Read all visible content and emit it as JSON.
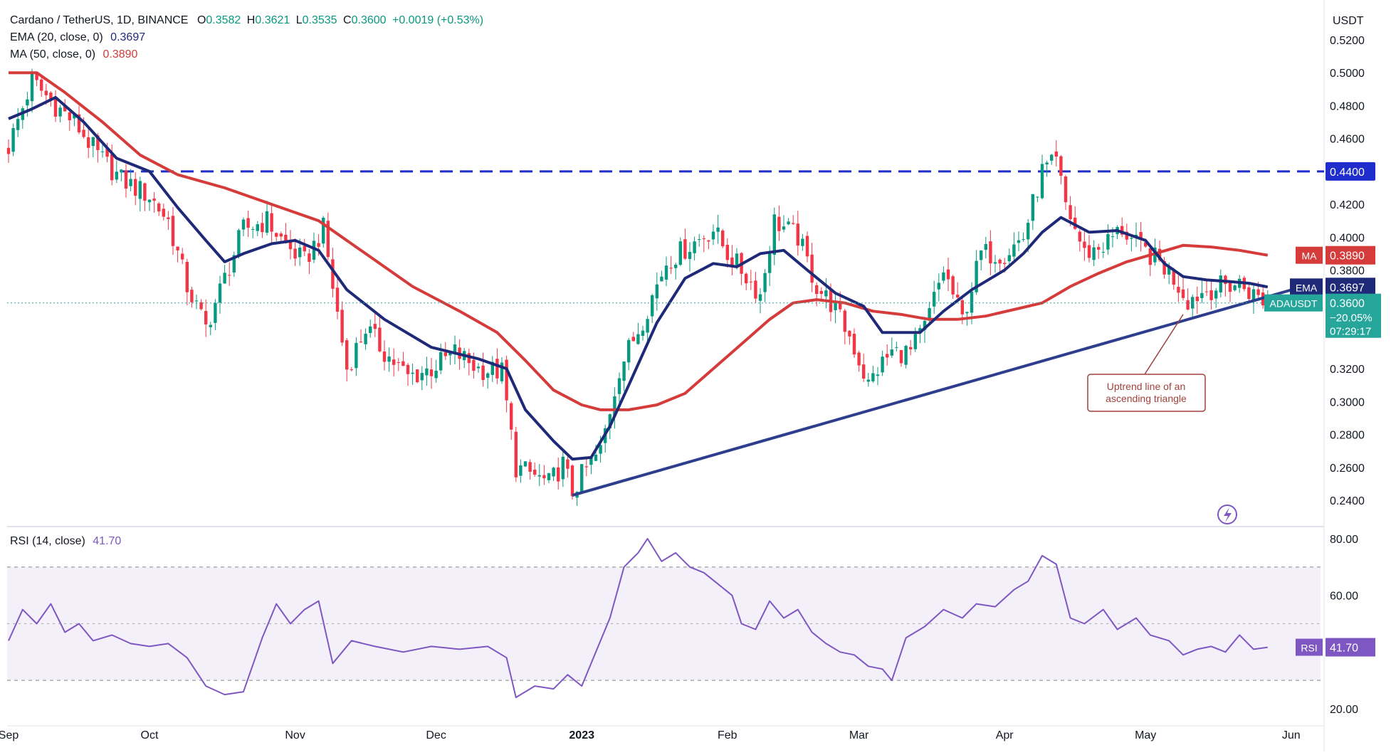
{
  "header": {
    "symbol": "Cardano / TetherUS, 1D, BINANCE",
    "o_label": "O",
    "o": "0.3582",
    "h_label": "H",
    "h": "0.3621",
    "l_label": "L",
    "l": "0.3535",
    "c_label": "C",
    "c": "0.3600",
    "change": "+0.0019 (+0.53%)",
    "ema_label": "EMA (20, close, 0)",
    "ema_value": "0.3697",
    "ma_label": "MA (50, close, 0)",
    "ma_value": "0.3890",
    "rsi_label": "RSI (14, close)",
    "rsi_value": "41.70"
  },
  "colors": {
    "up": "#089981",
    "down": "#f23645",
    "ema": "#1e2a78",
    "ma": "#d63b3b",
    "rsi": "#7e57c2",
    "trendline": "#2d3f8c",
    "resistance": "#1e2dcc",
    "annotation": "#a0413c"
  },
  "icons": {
    "replay": "lightning-bolt-icon"
  },
  "chart_data": [
    {
      "type": "candlestick",
      "title": "Cardano / TetherUS, 1D, BINANCE",
      "ylabel": "USDT",
      "ylim": [
        0.23,
        0.52
      ],
      "y_ticks": [
        "0.5200",
        "0.5000",
        "0.4800",
        "0.4600",
        "0.4200",
        "0.4000",
        "0.3800",
        "0.3200",
        "0.3000",
        "0.2800",
        "0.2600",
        "0.2400"
      ],
      "x_ticks": [
        "Sep",
        "Oct",
        "Nov",
        "Dec",
        "2023",
        "Feb",
        "Mar",
        "Apr",
        "May",
        "Jun"
      ],
      "x_tick_days": [
        0,
        30,
        61,
        91,
        122,
        153,
        181,
        212,
        242,
        273
      ],
      "anchors": [
        [
          0,
          0.455
        ],
        [
          5,
          0.495
        ],
        [
          10,
          0.48
        ],
        [
          14,
          0.47
        ],
        [
          19,
          0.45
        ],
        [
          24,
          0.435
        ],
        [
          30,
          0.425
        ],
        [
          34,
          0.41
        ],
        [
          38,
          0.37
        ],
        [
          42,
          0.345
        ],
        [
          46,
          0.375
        ],
        [
          50,
          0.405
        ],
        [
          55,
          0.41
        ],
        [
          59,
          0.395
        ],
        [
          63,
          0.385
        ],
        [
          67,
          0.405
        ],
        [
          69,
          0.37
        ],
        [
          72,
          0.32
        ],
        [
          76,
          0.345
        ],
        [
          80,
          0.33
        ],
        [
          85,
          0.315
        ],
        [
          90,
          0.32
        ],
        [
          95,
          0.33
        ],
        [
          100,
          0.32
        ],
        [
          105,
          0.318
        ],
        [
          108,
          0.26
        ],
        [
          112,
          0.255
        ],
        [
          115,
          0.25
        ],
        [
          118,
          0.262
        ],
        [
          120,
          0.245
        ],
        [
          122,
          0.255
        ],
        [
          126,
          0.27
        ],
        [
          130,
          0.32
        ],
        [
          135,
          0.35
        ],
        [
          140,
          0.385
        ],
        [
          145,
          0.395
        ],
        [
          150,
          0.405
        ],
        [
          153,
          0.39
        ],
        [
          156,
          0.38
        ],
        [
          160,
          0.365
        ],
        [
          163,
          0.41
        ],
        [
          168,
          0.4
        ],
        [
          172,
          0.37
        ],
        [
          175,
          0.36
        ],
        [
          179,
          0.34
        ],
        [
          183,
          0.31
        ],
        [
          185,
          0.32
        ],
        [
          188,
          0.33
        ],
        [
          192,
          0.33
        ],
        [
          195,
          0.345
        ],
        [
          199,
          0.38
        ],
        [
          203,
          0.35
        ],
        [
          207,
          0.39
        ],
        [
          212,
          0.39
        ],
        [
          216,
          0.4
        ],
        [
          220,
          0.44
        ],
        [
          223,
          0.445
        ],
        [
          225,
          0.42
        ],
        [
          229,
          0.39
        ],
        [
          233,
          0.395
        ],
        [
          237,
          0.405
        ],
        [
          240,
          0.395
        ],
        [
          245,
          0.385
        ],
        [
          248,
          0.375
        ],
        [
          251,
          0.362
        ],
        [
          255,
          0.368
        ],
        [
          258,
          0.37
        ],
        [
          262,
          0.372
        ],
        [
          265,
          0.365
        ],
        [
          268,
          0.36
        ]
      ],
      "ema_20": [
        [
          0,
          0.472
        ],
        [
          5,
          0.478
        ],
        [
          10,
          0.485
        ],
        [
          16,
          0.47
        ],
        [
          23,
          0.448
        ],
        [
          30,
          0.44
        ],
        [
          36,
          0.418
        ],
        [
          42,
          0.398
        ],
        [
          46,
          0.385
        ],
        [
          50,
          0.39
        ],
        [
          56,
          0.396
        ],
        [
          61,
          0.398
        ],
        [
          66,
          0.392
        ],
        [
          72,
          0.368
        ],
        [
          80,
          0.35
        ],
        [
          90,
          0.333
        ],
        [
          100,
          0.326
        ],
        [
          106,
          0.32
        ],
        [
          110,
          0.295
        ],
        [
          116,
          0.276
        ],
        [
          120,
          0.265
        ],
        [
          124,
          0.266
        ],
        [
          128,
          0.285
        ],
        [
          132,
          0.31
        ],
        [
          138,
          0.348
        ],
        [
          144,
          0.375
        ],
        [
          150,
          0.384
        ],
        [
          155,
          0.382
        ],
        [
          160,
          0.39
        ],
        [
          165,
          0.392
        ],
        [
          170,
          0.38
        ],
        [
          176,
          0.366
        ],
        [
          182,
          0.358
        ],
        [
          186,
          0.342
        ],
        [
          190,
          0.342
        ],
        [
          194,
          0.342
        ],
        [
          199,
          0.355
        ],
        [
          205,
          0.368
        ],
        [
          212,
          0.38
        ],
        [
          216,
          0.39
        ],
        [
          220,
          0.403
        ],
        [
          224,
          0.412
        ],
        [
          230,
          0.403
        ],
        [
          236,
          0.404
        ],
        [
          242,
          0.398
        ],
        [
          246,
          0.384
        ],
        [
          250,
          0.376
        ],
        [
          255,
          0.374
        ],
        [
          260,
          0.373
        ],
        [
          264,
          0.372
        ],
        [
          268,
          0.3697
        ]
      ],
      "ma_50": [
        [
          0,
          0.5
        ],
        [
          6,
          0.5
        ],
        [
          12,
          0.488
        ],
        [
          20,
          0.47
        ],
        [
          28,
          0.45
        ],
        [
          36,
          0.438
        ],
        [
          46,
          0.43
        ],
        [
          56,
          0.42
        ],
        [
          66,
          0.41
        ],
        [
          76,
          0.39
        ],
        [
          86,
          0.37
        ],
        [
          96,
          0.355
        ],
        [
          104,
          0.342
        ],
        [
          110,
          0.325
        ],
        [
          116,
          0.307
        ],
        [
          122,
          0.298
        ],
        [
          126,
          0.295
        ],
        [
          132,
          0.295
        ],
        [
          138,
          0.298
        ],
        [
          144,
          0.305
        ],
        [
          150,
          0.32
        ],
        [
          156,
          0.335
        ],
        [
          162,
          0.35
        ],
        [
          167,
          0.36
        ],
        [
          172,
          0.362
        ],
        [
          178,
          0.36
        ],
        [
          184,
          0.355
        ],
        [
          190,
          0.353
        ],
        [
          196,
          0.35
        ],
        [
          202,
          0.35
        ],
        [
          208,
          0.352
        ],
        [
          214,
          0.356
        ],
        [
          220,
          0.36
        ],
        [
          226,
          0.37
        ],
        [
          232,
          0.378
        ],
        [
          238,
          0.385
        ],
        [
          244,
          0.39
        ],
        [
          250,
          0.395
        ],
        [
          256,
          0.394
        ],
        [
          262,
          0.392
        ],
        [
          268,
          0.389
        ]
      ],
      "last_price": "0.3600",
      "last_change": "−20.05%",
      "countdown": "07:29:17",
      "ticker": "ADAUSDT",
      "ema_tag": "EMA",
      "ma_tag": "MA",
      "resistance_level": 0.44,
      "resistance_label": "0.4400",
      "trendline": [
        [
          120,
          0.243
        ],
        [
          278,
          0.372
        ]
      ],
      "annotation": [
        "Uptrend line of an",
        "ascending triangle"
      ]
    },
    {
      "type": "line",
      "title": "RSI (14, close)",
      "ylim": [
        15,
        85
      ],
      "y_ticks": [
        "80.00",
        "60.00",
        "20.00"
      ],
      "band": [
        30,
        70
      ],
      "midline": 50,
      "tag": "RSI",
      "value_label": "41.70",
      "rsi": [
        [
          0,
          44
        ],
        [
          3,
          55
        ],
        [
          6,
          50
        ],
        [
          9,
          57
        ],
        [
          12,
          47
        ],
        [
          15,
          50
        ],
        [
          18,
          44
        ],
        [
          22,
          46
        ],
        [
          26,
          43
        ],
        [
          30,
          42
        ],
        [
          34,
          43
        ],
        [
          38,
          38
        ],
        [
          42,
          28
        ],
        [
          46,
          25
        ],
        [
          50,
          26
        ],
        [
          54,
          45
        ],
        [
          57,
          57
        ],
        [
          60,
          50
        ],
        [
          63,
          55
        ],
        [
          66,
          58
        ],
        [
          69,
          36
        ],
        [
          73,
          44
        ],
        [
          78,
          42
        ],
        [
          84,
          40
        ],
        [
          90,
          42
        ],
        [
          96,
          41
        ],
        [
          102,
          42
        ],
        [
          106,
          38
        ],
        [
          108,
          24
        ],
        [
          112,
          28
        ],
        [
          116,
          27
        ],
        [
          119,
          32
        ],
        [
          122,
          28
        ],
        [
          125,
          40
        ],
        [
          128,
          52
        ],
        [
          131,
          70
        ],
        [
          134,
          75
        ],
        [
          136,
          80
        ],
        [
          139,
          72
        ],
        [
          142,
          75
        ],
        [
          145,
          70
        ],
        [
          148,
          68
        ],
        [
          151,
          64
        ],
        [
          154,
          60
        ],
        [
          156,
          50
        ],
        [
          159,
          48
        ],
        [
          162,
          58
        ],
        [
          165,
          52
        ],
        [
          168,
          55
        ],
        [
          171,
          47
        ],
        [
          174,
          43
        ],
        [
          177,
          40
        ],
        [
          180,
          39
        ],
        [
          183,
          35
        ],
        [
          186,
          34
        ],
        [
          188,
          30
        ],
        [
          191,
          45
        ],
        [
          195,
          49
        ],
        [
          199,
          55
        ],
        [
          203,
          52
        ],
        [
          206,
          57
        ],
        [
          210,
          56
        ],
        [
          214,
          62
        ],
        [
          217,
          65
        ],
        [
          220,
          74
        ],
        [
          223,
          71
        ],
        [
          226,
          52
        ],
        [
          229,
          50
        ],
        [
          233,
          55
        ],
        [
          236,
          48
        ],
        [
          240,
          52
        ],
        [
          243,
          46
        ],
        [
          247,
          44
        ],
        [
          250,
          39
        ],
        [
          253,
          41
        ],
        [
          256,
          42
        ],
        [
          259,
          40
        ],
        [
          262,
          46
        ],
        [
          265,
          41
        ],
        [
          268,
          41.7
        ]
      ]
    }
  ]
}
